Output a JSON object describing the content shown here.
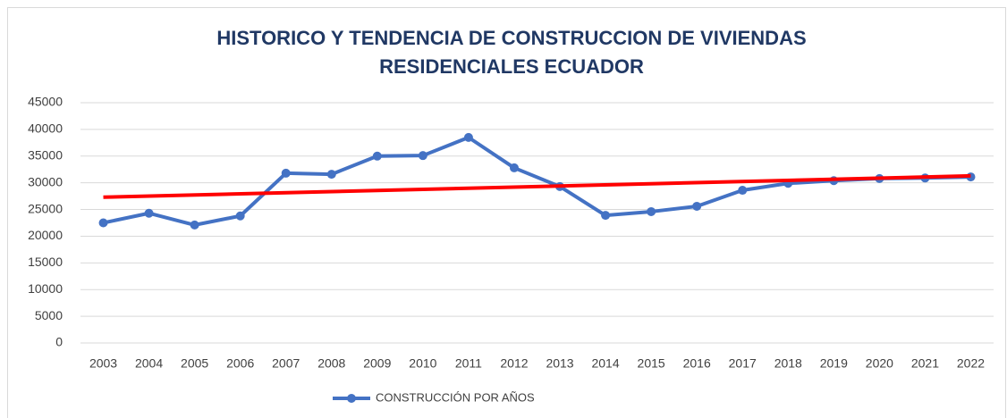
{
  "chart_data": {
    "type": "line",
    "title": [
      "HISTORICO Y TENDENCIA DE CONSTRUCCION DE VIVIENDAS",
      "RESIDENCIALES ECUADOR"
    ],
    "categories": [
      "2003",
      "2004",
      "2005",
      "2006",
      "2007",
      "2008",
      "2009",
      "2010",
      "2011",
      "2012",
      "2013",
      "2014",
      "2015",
      "2016",
      "2017",
      "2018",
      "2019",
      "2020",
      "2021",
      "2022"
    ],
    "series": [
      {
        "name": "CONSTRUCCIÓN POR AÑOS",
        "color": "#4472c4",
        "values": [
          22500,
          24300,
          22100,
          23800,
          31800,
          31600,
          35000,
          35100,
          38500,
          32800,
          29300,
          23900,
          24600,
          25600,
          28600,
          29900,
          30400,
          30800,
          30900,
          31100
        ]
      }
    ],
    "trend": {
      "color": "#ff0000",
      "values": [
        27300,
        31300
      ]
    },
    "ylim": [
      0,
      45000
    ],
    "yticks": [
      0,
      5000,
      10000,
      15000,
      20000,
      25000,
      30000,
      35000,
      40000,
      45000
    ],
    "grid": true,
    "legend": "bottom"
  }
}
